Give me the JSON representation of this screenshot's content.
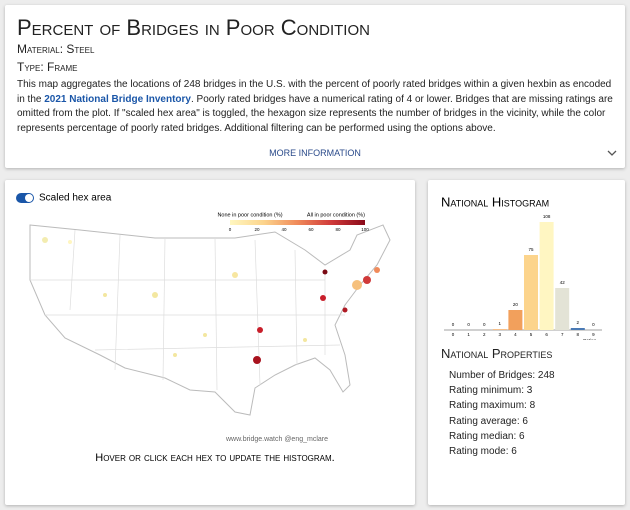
{
  "header": {
    "title": "Percent of Bridges in Poor Condition",
    "material": "Material: Steel",
    "type": "Type: Frame",
    "description": {
      "before": "This map aggregates the locations of 248 bridges in the U.S. with the percent of poorly rated bridges within a given hexbin as encoded in the ",
      "link": "2021 National Bridge Inventory",
      "after": ". Poorly rated bridges have a numerical rating of 4 or lower. Bridges that are missing ratings are omitted from the plot. If \"scaled hex area\" is toggled, the hexagon size represents the number of bridges in the vicinity, while the color represents percentage of poorly rated bridges. Additional filtering can be performed using the options above."
    },
    "more_info": "MORE INFORMATION"
  },
  "map": {
    "toggle": "Scaled hex area",
    "legend": {
      "left_label": "None in poor condition (%)",
      "right_label": "All in poor condition (%)",
      "ticks": [
        0,
        20,
        40,
        60,
        80,
        100
      ]
    },
    "credit": "www.bridge.watch @eng_mclare",
    "caption": "Hover or click each hex to update the histogram."
  },
  "chart_data": {
    "type": "bar",
    "title": "National Histogram",
    "x_label": "Rating →",
    "categories": [
      "0",
      "1",
      "2",
      "3",
      "4",
      "5",
      "6",
      "7",
      "8",
      "9"
    ],
    "values": [
      0,
      0,
      0,
      1,
      20,
      75,
      108,
      42,
      2,
      0
    ],
    "colors": [
      "#e8e8e8",
      "#e8e8e8",
      "#e8e8e8",
      "#f7c08a",
      "#f2a05c",
      "#fcd48c",
      "#fff6c2",
      "#e3e3d6",
      "#4a7ab5",
      "#3a5f9a"
    ]
  },
  "properties": {
    "title": "National Properties",
    "items": [
      "Number of Bridges: 248",
      "Rating minimum: 3",
      "Rating maximum: 8",
      "Rating average: 6",
      "Rating median: 6",
      "Rating mode: 6"
    ]
  }
}
